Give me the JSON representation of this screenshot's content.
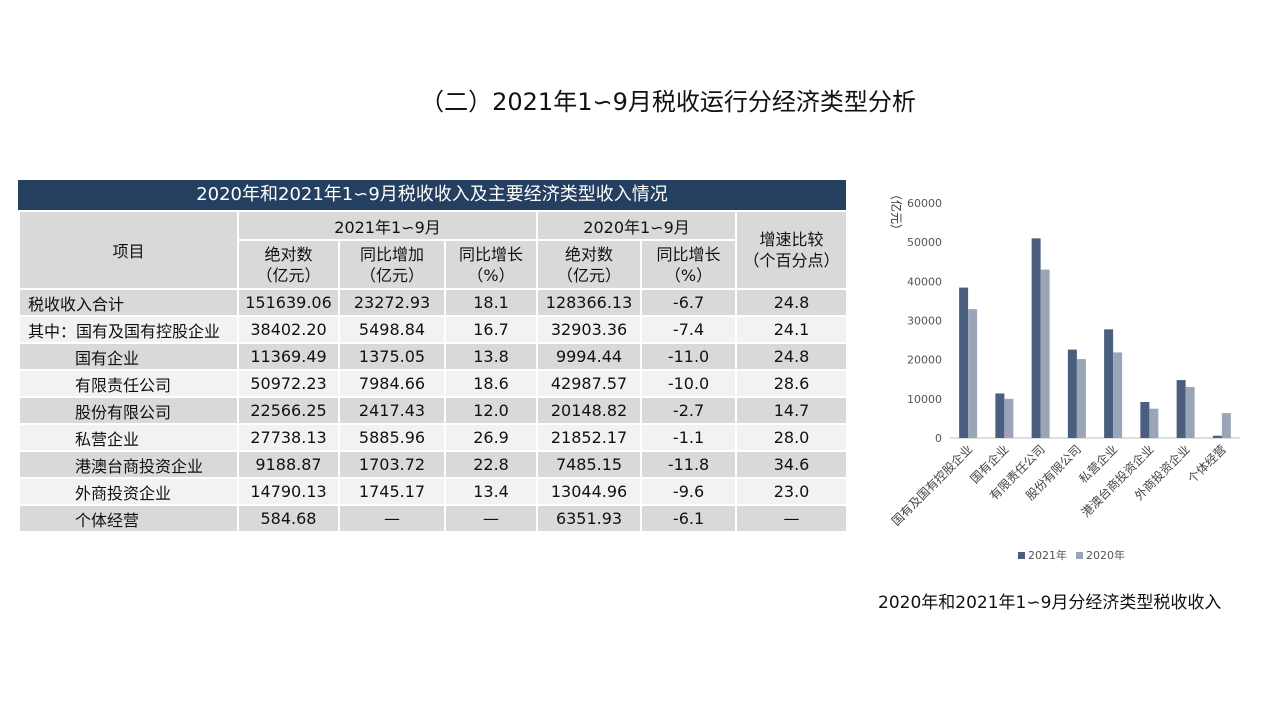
{
  "page_title": "（二）2021年1∽9月税收运行分经济类型分析",
  "table": {
    "title": "2020年和2021年1∽9月税收收入及主要经济类型收入情况",
    "col_item": "项目",
    "group_2021": "2021年1∽9月",
    "group_2020": "2020年1∽9月",
    "col_diff": "增速比较\n（个百分点）",
    "sub_headers": [
      "绝对数\n（亿元）",
      "同比增加\n（亿元）",
      "同比增长\n（%）",
      "绝对数\n（亿元）",
      "同比增长\n（%）"
    ],
    "rows": [
      {
        "name": "税收收入合计",
        "indent": false,
        "v2021": "151639.06",
        "inc2021": "23272.93",
        "g2021": "18.1",
        "v2020": "128366.13",
        "g2020": "-6.7",
        "diff": "24.8"
      },
      {
        "name": "其中：国有及国有控股企业",
        "indent": false,
        "v2021": "38402.20",
        "inc2021": "5498.84",
        "g2021": "16.7",
        "v2020": "32903.36",
        "g2020": "-7.4",
        "diff": "24.1"
      },
      {
        "name": "国有企业",
        "indent": true,
        "v2021": "11369.49",
        "inc2021": "1375.05",
        "g2021": "13.8",
        "v2020": "9994.44",
        "g2020": "-11.0",
        "diff": "24.8"
      },
      {
        "name": "有限责任公司",
        "indent": true,
        "v2021": "50972.23",
        "inc2021": "7984.66",
        "g2021": "18.6",
        "v2020": "42987.57",
        "g2020": "-10.0",
        "diff": "28.6"
      },
      {
        "name": "股份有限公司",
        "indent": true,
        "v2021": "22566.25",
        "inc2021": "2417.43",
        "g2021": "12.0",
        "v2020": "20148.82",
        "g2020": "-2.7",
        "diff": "14.7"
      },
      {
        "name": "私营企业",
        "indent": true,
        "v2021": "27738.13",
        "inc2021": "5885.96",
        "g2021": "26.9",
        "v2020": "21852.17",
        "g2020": "-1.1",
        "diff": "28.0"
      },
      {
        "name": "港澳台商投资企业",
        "indent": true,
        "v2021": "9188.87",
        "inc2021": "1703.72",
        "g2021": "22.8",
        "v2020": "7485.15",
        "g2020": "-11.8",
        "diff": "34.6"
      },
      {
        "name": "外商投资企业",
        "indent": true,
        "v2021": "14790.13",
        "inc2021": "1745.17",
        "g2021": "13.4",
        "v2020": "13044.96",
        "g2020": "-9.6",
        "diff": "23.0"
      },
      {
        "name": "个体经营",
        "indent": true,
        "v2021": "584.68",
        "inc2021": "—",
        "g2021": "—",
        "v2020": "6351.93",
        "g2020": "-6.1",
        "diff": "—"
      }
    ]
  },
  "chart_data": {
    "type": "bar",
    "title": "2020年和2021年1∽9月分经济类型税收收入",
    "ylabel": "（亿元）",
    "xlabel": "",
    "ylim": [
      0,
      60000
    ],
    "yticks": [
      0,
      10000,
      20000,
      30000,
      40000,
      50000,
      60000
    ],
    "grid": false,
    "legend_position": "bottom",
    "categories": [
      "国有及国有控股企业",
      "国有企业",
      "有限责任公司",
      "股份有限公司",
      "私营企业",
      "港澳台商投资企业",
      "外商投资企业",
      "个体经营"
    ],
    "series": [
      {
        "name": "2021年",
        "color": "#4a5f7e",
        "values": [
          38402.2,
          11369.49,
          50972.23,
          22566.25,
          27738.13,
          9188.87,
          14790.13,
          584.68
        ]
      },
      {
        "name": "2020年",
        "color": "#9aa5b8",
        "values": [
          32903.36,
          9994.44,
          42987.57,
          20148.82,
          21852.17,
          7485.15,
          13044.96,
          6351.93
        ]
      }
    ]
  },
  "colors": {
    "table_header_bg": "#243f60",
    "row_dark": "#d9d9d9",
    "row_light": "#f2f2f2"
  }
}
